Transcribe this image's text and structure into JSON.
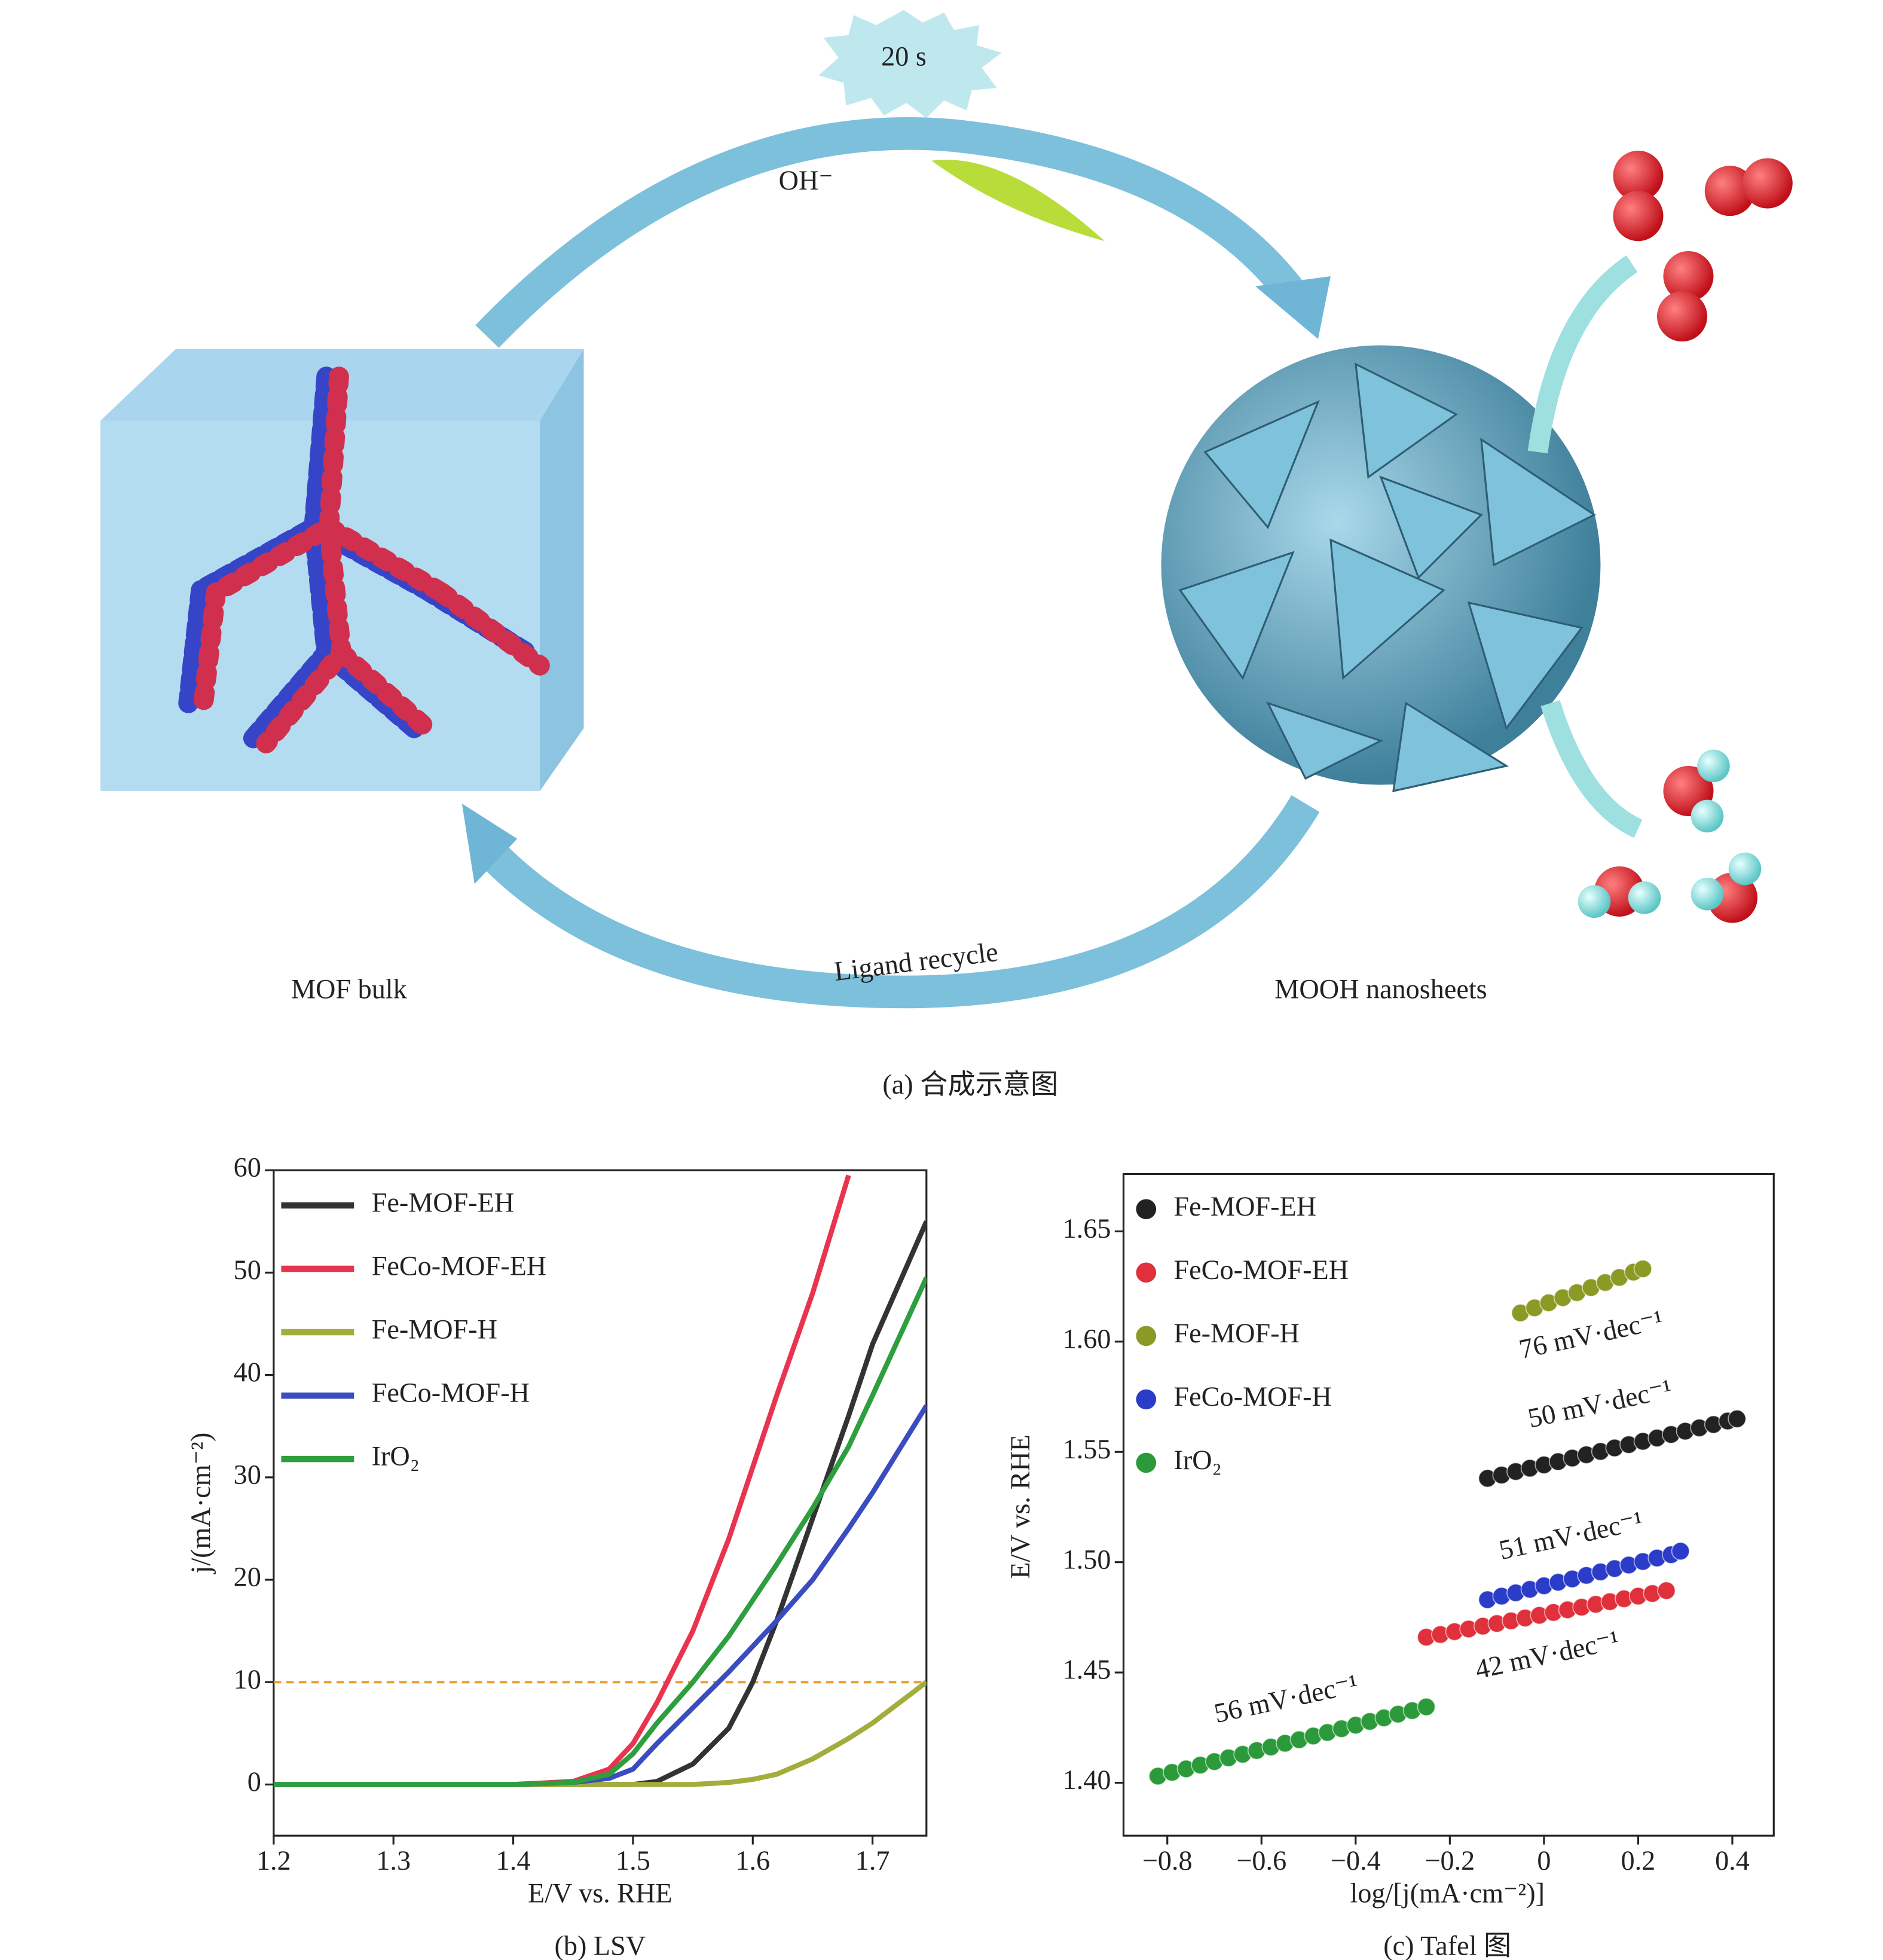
{
  "diagram": {
    "star_label": "20 s",
    "reagent": "OH⁻",
    "recycle_label": "Ligand recycle",
    "left_label": "MOF bulk",
    "right_label": "MOOH nanosheets",
    "caption": "(a) 合成示意图"
  },
  "chart_data": [
    {
      "type": "line",
      "caption": "(b) LSV",
      "xlabel": "E/V vs. RHE",
      "ylabel": "j/(mA·cm⁻²)",
      "xlim": [
        1.2,
        1.745
      ],
      "ylim": [
        -5,
        60
      ],
      "xticks": [
        1.2,
        1.3,
        1.4,
        1.5,
        1.6,
        1.7
      ],
      "yticks": [
        0,
        10,
        20,
        30,
        40,
        50,
        60
      ],
      "legend": "upper left",
      "reference_line": {
        "value": 10,
        "color": "#f0a030"
      },
      "x": [
        1.2,
        1.3,
        1.4,
        1.45,
        1.48,
        1.5,
        1.52,
        1.55,
        1.58,
        1.6,
        1.62,
        1.65,
        1.68,
        1.7,
        1.745
      ],
      "series": [
        {
          "name": "Fe-MOF-EH",
          "color": "#333333",
          "values": [
            0,
            0,
            0,
            0,
            0,
            0,
            0.3,
            2,
            5.5,
            10,
            16,
            26,
            36,
            43,
            55
          ]
        },
        {
          "name": "FeCo-MOF-EH",
          "color": "#e8344f",
          "values": [
            0,
            0,
            0,
            0.3,
            1.5,
            4,
            8,
            15,
            24,
            31,
            38,
            48,
            59.5,
            null,
            null
          ]
        },
        {
          "name": "Fe-MOF-H",
          "color": "#a2ad3c",
          "values": [
            0,
            0,
            0,
            0,
            0,
            0,
            0,
            0,
            0.2,
            0.5,
            1,
            2.5,
            4.5,
            6,
            10
          ]
        },
        {
          "name": "FeCo-MOF-H",
          "color": "#3b4cc0",
          "values": [
            0,
            0,
            0,
            0.2,
            0.6,
            1.5,
            4,
            7.5,
            11,
            13.5,
            16,
            20,
            25,
            28.5,
            37
          ]
        },
        {
          "name": "IrO₂",
          "color": "#2e9e3e",
          "values": [
            0,
            0,
            0,
            0.2,
            1,
            3,
            6,
            10,
            14.5,
            18,
            21.5,
            27,
            33,
            38,
            49.5
          ]
        }
      ]
    },
    {
      "type": "scatter",
      "caption": "(c) Tafel 图",
      "xlabel": "log/[j(mA·cm⁻²)]",
      "ylabel": "E/V vs. RHE",
      "xlim": [
        -0.893,
        0.488
      ],
      "ylim": [
        1.376,
        1.676
      ],
      "xticks": [
        {
          "value": -0.8,
          "label": "−0.8"
        },
        {
          "value": -0.6,
          "label": "−0.6"
        },
        {
          "value": -0.4,
          "label": "−0.4"
        },
        {
          "value": -0.2,
          "label": "−0.2"
        },
        0,
        0.2,
        0.4
      ],
      "yticks": [
        {
          "value": 1.4,
          "label": "1.40"
        },
        1.45,
        {
          "value": 1.5,
          "label": "1.50"
        },
        1.55,
        {
          "value": 1.6,
          "label": "1.60"
        },
        1.65
      ],
      "legend": "upper left",
      "annotations": [
        "76 mV·dec⁻¹",
        "50 mV·dec⁻¹",
        "51 mV·dec⁻¹",
        "42 mV·dec⁻¹",
        "56 mV·dec⁻¹"
      ],
      "series": [
        {
          "name": "Fe-MOF-EH",
          "color": "#222222",
          "x": [
            -0.12,
            -0.09,
            -0.06,
            -0.03,
            0,
            0.03,
            0.06,
            0.09,
            0.12,
            0.15,
            0.18,
            0.21,
            0.24,
            0.27,
            0.3,
            0.33,
            0.36,
            0.39,
            0.41
          ],
          "values": [
            1.538,
            1.5395,
            1.5411,
            1.5426,
            1.5441,
            1.5456,
            1.5472,
            1.5487,
            1.5502,
            1.5518,
            1.5533,
            1.5548,
            1.5563,
            1.5579,
            1.5594,
            1.5609,
            1.5624,
            1.564,
            1.565
          ]
        },
        {
          "name": "FeCo-MOF-EH",
          "color": "#e0303c",
          "x": [
            -0.25,
            -0.22,
            -0.19,
            -0.16,
            -0.13,
            -0.1,
            -0.07,
            -0.04,
            -0.01,
            0.02,
            0.05,
            0.08,
            0.11,
            0.14,
            0.17,
            0.2,
            0.23,
            0.26
          ],
          "values": [
            1.466,
            1.4672,
            1.4685,
            1.4697,
            1.471,
            1.4722,
            1.4734,
            1.4747,
            1.4759,
            1.4772,
            1.4784,
            1.4796,
            1.4809,
            1.4821,
            1.4834,
            1.4846,
            1.4858,
            1.4871
          ]
        },
        {
          "name": "Fe-MOF-H",
          "color": "#8a9a25",
          "x": [
            -0.05,
            -0.02,
            0.01,
            0.04,
            0.07,
            0.1,
            0.13,
            0.16,
            0.19,
            0.21
          ],
          "values": [
            1.613,
            1.6153,
            1.6176,
            1.6199,
            1.6222,
            1.6245,
            1.6268,
            1.6291,
            1.6315,
            1.633
          ]
        },
        {
          "name": "FeCo-MOF-H",
          "color": "#2a3cc8",
          "x": [
            -0.12,
            -0.09,
            -0.06,
            -0.03,
            0,
            0.03,
            0.06,
            0.09,
            0.12,
            0.15,
            0.18,
            0.21,
            0.24,
            0.27,
            0.29
          ],
          "values": [
            1.483,
            1.4846,
            1.4861,
            1.4877,
            1.4893,
            1.4909,
            1.4924,
            1.494,
            1.4956,
            1.4971,
            1.4987,
            1.5003,
            1.5019,
            1.5034,
            1.505
          ]
        },
        {
          "name": "IrO₂",
          "color": "#2c9a3a",
          "x": [
            -0.82,
            -0.79,
            -0.76,
            -0.73,
            -0.7,
            -0.67,
            -0.64,
            -0.61,
            -0.58,
            -0.55,
            -0.52,
            -0.49,
            -0.46,
            -0.43,
            -0.4,
            -0.37,
            -0.34,
            -0.31,
            -0.28,
            -0.25
          ],
          "values": [
            1.403,
            1.4047,
            1.4063,
            1.408,
            1.4096,
            1.4113,
            1.4129,
            1.4146,
            1.4162,
            1.4179,
            1.4195,
            1.4212,
            1.4228,
            1.4245,
            1.4261,
            1.4278,
            1.4294,
            1.4311,
            1.4327,
            1.4344
          ]
        }
      ]
    }
  ]
}
